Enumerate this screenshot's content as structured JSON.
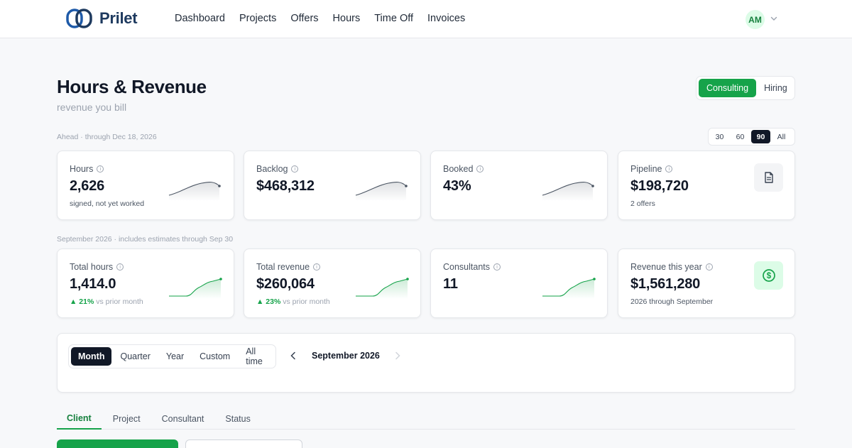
{
  "app": {
    "brand": "Prilet",
    "user_initials": "AM"
  },
  "nav": {
    "items": [
      "Dashboard",
      "Projects",
      "Offers",
      "Hours",
      "Time Off",
      "Invoices"
    ]
  },
  "header": {
    "title": "Hours & Revenue",
    "subtitle": "revenue you bill",
    "toggle": [
      {
        "label": "Consulting",
        "active": true
      },
      {
        "label": "Hiring",
        "active": false
      }
    ]
  },
  "ahead": {
    "label": "Ahead · through Dec 18, 2026",
    "range_options": [
      {
        "label": "30",
        "active": false
      },
      {
        "label": "60",
        "active": false
      },
      {
        "label": "90",
        "active": true
      },
      {
        "label": "All",
        "active": false
      }
    ],
    "cards": [
      {
        "label": "Hours",
        "value": "2,626",
        "sub": "signed, not yet worked",
        "spark": "gray"
      },
      {
        "label": "Backlog",
        "value": "$468,312",
        "sub": "",
        "spark": "gray"
      },
      {
        "label": "Booked",
        "value": "43%",
        "sub": "",
        "spark": "gray"
      },
      {
        "label": "Pipeline",
        "value": "$198,720",
        "sub": "2 offers",
        "icon": "document-icon"
      }
    ]
  },
  "month": {
    "label": "September 2026 · includes estimates through Sep 30",
    "cards": [
      {
        "label": "Total hours",
        "value": "1,414.0",
        "trend": "▲ 21%",
        "trend_note": "vs prior month",
        "spark": "green"
      },
      {
        "label": "Total revenue",
        "value": "$260,064",
        "trend": "▲ 23%",
        "trend_note": "vs prior month",
        "spark": "green"
      },
      {
        "label": "Consultants",
        "value": "11",
        "spark": "green"
      },
      {
        "label": "Revenue this year",
        "value": "$1,561,280",
        "sub": "2026 through September",
        "icon": "dollar-icon"
      }
    ]
  },
  "period": {
    "tabs": [
      {
        "label": "Month",
        "active": true
      },
      {
        "label": "Quarter",
        "active": false
      },
      {
        "label": "Year",
        "active": false
      },
      {
        "label": "Custom",
        "active": false
      },
      {
        "label": "All time",
        "active": false
      }
    ],
    "current": "September 2026"
  },
  "breakdown_tabs": [
    {
      "label": "Client",
      "active": true
    },
    {
      "label": "Project",
      "active": false
    },
    {
      "label": "Consultant",
      "active": false
    },
    {
      "label": "Status",
      "active": false
    }
  ],
  "colors": {
    "accent": "#16a34a",
    "dark": "#111827",
    "brand": "#1e3a5f"
  }
}
